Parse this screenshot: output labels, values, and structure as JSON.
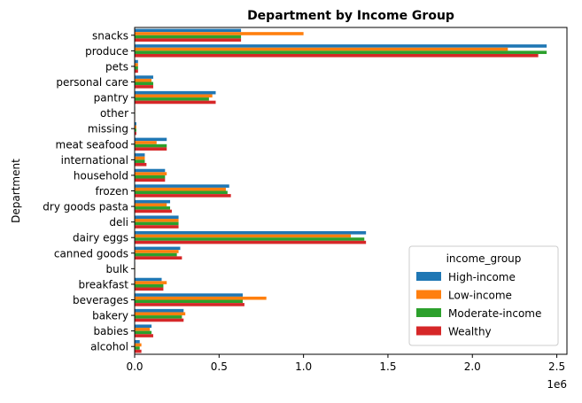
{
  "chart_data": {
    "type": "bar",
    "orientation": "horizontal",
    "title": "Department by Income Group",
    "ylabel": "Department",
    "xlabel": "",
    "x_offset_label": "1e6",
    "xlim": [
      0,
      2.56
    ],
    "x_ticks": [
      0.0,
      0.5,
      1.0,
      1.5,
      2.0,
      2.5
    ],
    "x_tick_labels": [
      "0.0",
      "0.5",
      "1.0",
      "1.5",
      "2.0",
      "2.5"
    ],
    "grid": false,
    "legend": {
      "title": "income_group",
      "placement": "lower-right"
    },
    "categories": [
      "alcohol",
      "babies",
      "bakery",
      "beverages",
      "breakfast",
      "bulk",
      "canned goods",
      "dairy eggs",
      "deli",
      "dry goods pasta",
      "frozen",
      "household",
      "international",
      "meat seafood",
      "missing",
      "other",
      "pantry",
      "personal care",
      "pets",
      "produce",
      "snacks"
    ],
    "series": [
      {
        "name": "High-income",
        "color": "#1f77b4",
        "values": [
          0.03,
          0.1,
          0.29,
          0.64,
          0.16,
          0.003,
          0.27,
          1.37,
          0.26,
          0.21,
          0.56,
          0.18,
          0.06,
          0.19,
          0.01,
          0.003,
          0.48,
          0.11,
          0.02,
          2.44,
          0.63
        ]
      },
      {
        "name": "Low-income",
        "color": "#ff7f0e",
        "values": [
          0.04,
          0.09,
          0.3,
          0.78,
          0.19,
          0.003,
          0.26,
          1.28,
          0.26,
          0.19,
          0.54,
          0.19,
          0.06,
          0.13,
          0.01,
          0.003,
          0.46,
          0.1,
          0.02,
          2.21,
          1.0
        ]
      },
      {
        "name": "Moderate-income",
        "color": "#2ca02c",
        "values": [
          0.03,
          0.1,
          0.28,
          0.64,
          0.17,
          0.003,
          0.25,
          1.36,
          0.26,
          0.21,
          0.55,
          0.18,
          0.06,
          0.19,
          0.01,
          0.003,
          0.44,
          0.11,
          0.02,
          2.44,
          0.63
        ]
      },
      {
        "name": "Wealthy",
        "color": "#d62728",
        "values": [
          0.04,
          0.11,
          0.29,
          0.65,
          0.17,
          0.003,
          0.28,
          1.37,
          0.26,
          0.22,
          0.57,
          0.18,
          0.07,
          0.19,
          0.01,
          0.003,
          0.48,
          0.11,
          0.02,
          2.39,
          0.63
        ]
      }
    ]
  }
}
